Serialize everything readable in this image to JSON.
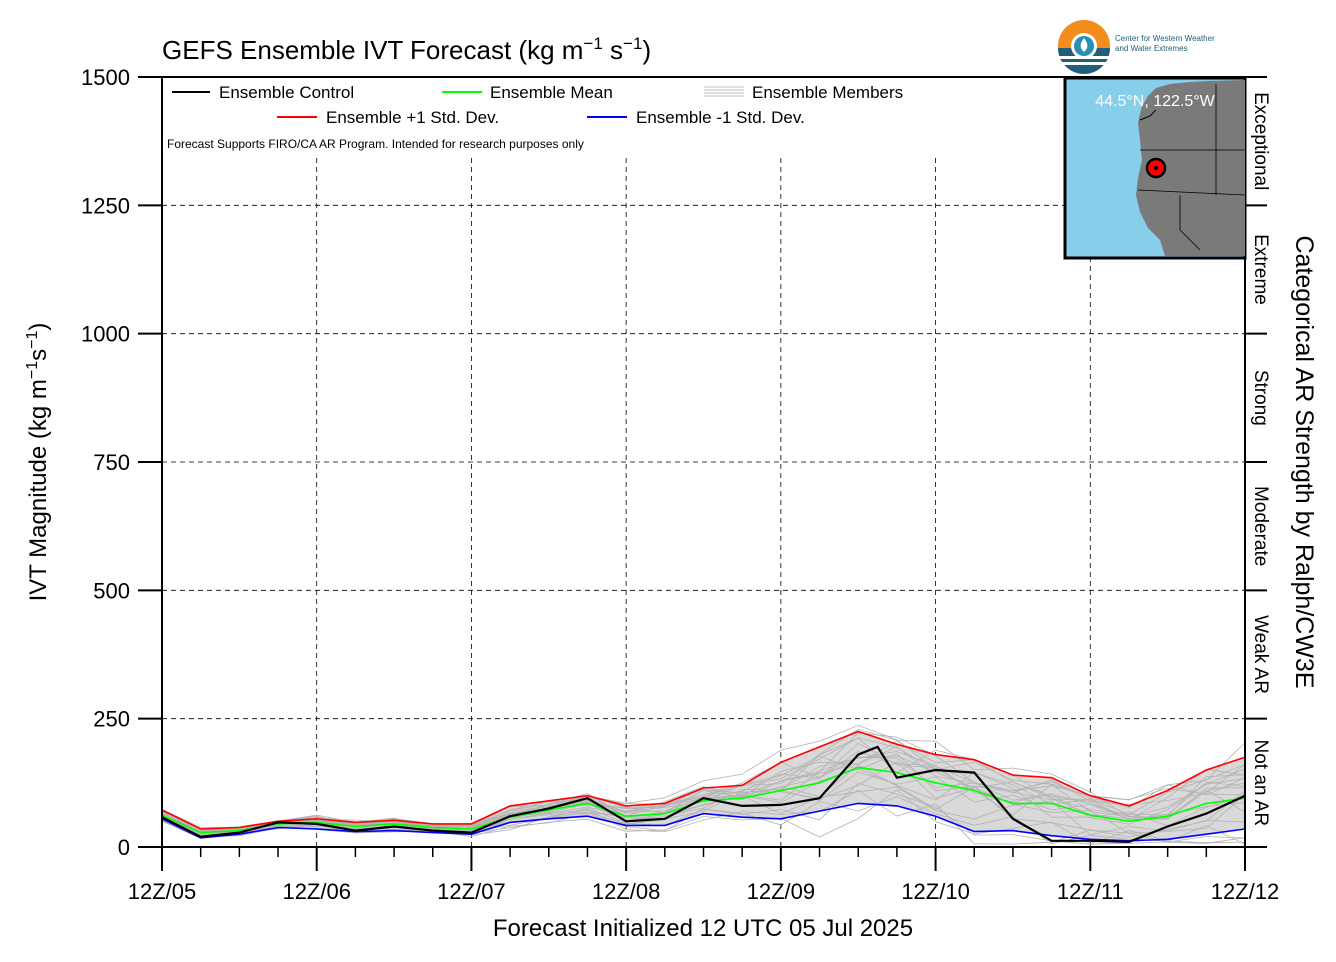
{
  "chart_data": {
    "type": "line",
    "title": "GEFS Ensemble IVT Forecast (kg m",
    "title_sup1": "−1",
    "title_mid": " s",
    "title_sup2": "−1",
    "title_end": ")",
    "ylabel_main": "IVT Magnitude (kg m",
    "ylabel_sup1": "−1",
    "ylabel_mid": "s",
    "ylabel_sup2": "−1",
    "ylabel_end": ")",
    "xlabel": "Forecast Initialized 12 UTC 05 Jul 2025",
    "right_label": "Categorical AR Strength by Ralph/CW3E",
    "note": "Forecast Supports FIRO/CA AR Program. Intended for research purposes only",
    "ylim": [
      0,
      1500
    ],
    "xlim": [
      0,
      168
    ],
    "y_ticks": [
      0,
      250,
      500,
      750,
      1000,
      1250,
      1500
    ],
    "x_ticks": [
      {
        "h": 0,
        "label": "12Z/05"
      },
      {
        "h": 24,
        "label": "12Z/06"
      },
      {
        "h": 48,
        "label": "12Z/07"
      },
      {
        "h": 72,
        "label": "12Z/08"
      },
      {
        "h": 96,
        "label": "12Z/09"
      },
      {
        "h": 120,
        "label": "12Z/10"
      },
      {
        "h": 144,
        "label": "12Z/11"
      },
      {
        "h": 168,
        "label": "12Z/12"
      }
    ],
    "categories_ar": [
      {
        "label": "Not an AR",
        "from": 0,
        "to": 250
      },
      {
        "label": "Weak AR",
        "from": 250,
        "to": 500
      },
      {
        "label": "Moderate",
        "from": 500,
        "to": 750
      },
      {
        "label": "Strong",
        "from": 750,
        "to": 1000
      },
      {
        "label": "Extreme",
        "from": 1000,
        "to": 1250
      },
      {
        "label": "Exceptional",
        "from": 1250,
        "to": 1500
      }
    ],
    "legend": [
      {
        "label": "Ensemble Control",
        "color": "#000000"
      },
      {
        "label": "Ensemble Mean",
        "color": "#00ff00"
      },
      {
        "label": "Ensemble Members",
        "color": "#aaaaaa"
      },
      {
        "label": "Ensemble +1 Std. Dev.",
        "color": "#ff0000"
      },
      {
        "label": "Ensemble -1 Std. Dev.",
        "color": "#0000ff"
      }
    ],
    "location": "44.5°N, 122.5°W",
    "series": [
      {
        "name": "Ensemble Control",
        "color": "#000000",
        "x": [
          0,
          6,
          12,
          18,
          24,
          30,
          36,
          42,
          48,
          54,
          60,
          66,
          72,
          78,
          84,
          90,
          96,
          102,
          108,
          111,
          114,
          120,
          126,
          132,
          138,
          144,
          150,
          156,
          162,
          168
        ],
        "values": [
          58,
          20,
          28,
          48,
          45,
          32,
          40,
          32,
          28,
          60,
          75,
          95,
          50,
          55,
          95,
          80,
          82,
          95,
          180,
          195,
          135,
          150,
          145,
          55,
          12,
          12,
          10,
          40,
          65,
          100
        ]
      },
      {
        "name": "Ensemble Mean",
        "color": "#00ff00",
        "x": [
          0,
          6,
          12,
          18,
          24,
          30,
          36,
          42,
          48,
          54,
          60,
          66,
          72,
          78,
          84,
          90,
          96,
          102,
          108,
          114,
          120,
          126,
          132,
          138,
          144,
          150,
          156,
          162,
          168
        ],
        "values": [
          62,
          28,
          32,
          45,
          48,
          40,
          45,
          38,
          35,
          58,
          72,
          85,
          60,
          65,
          90,
          95,
          110,
          125,
          155,
          145,
          125,
          110,
          85,
          85,
          62,
          50,
          60,
          85,
          95
        ]
      },
      {
        "name": "Ensemble +1 Std. Dev.",
        "color": "#ff0000",
        "x": [
          0,
          6,
          12,
          18,
          24,
          30,
          36,
          42,
          48,
          54,
          60,
          66,
          72,
          78,
          84,
          90,
          96,
          102,
          108,
          114,
          120,
          126,
          132,
          138,
          144,
          150,
          156,
          162,
          168
        ],
        "values": [
          72,
          35,
          38,
          50,
          55,
          48,
          52,
          45,
          45,
          80,
          90,
          100,
          80,
          85,
          115,
          120,
          165,
          195,
          225,
          200,
          180,
          170,
          140,
          135,
          100,
          80,
          110,
          150,
          175
        ]
      },
      {
        "name": "Ensemble -1 Std. Dev.",
        "color": "#0000ff",
        "x": [
          0,
          6,
          12,
          18,
          24,
          30,
          36,
          42,
          48,
          54,
          60,
          66,
          72,
          78,
          84,
          90,
          96,
          102,
          108,
          114,
          120,
          126,
          132,
          138,
          144,
          150,
          156,
          162,
          168
        ],
        "values": [
          55,
          18,
          25,
          38,
          35,
          30,
          32,
          28,
          25,
          48,
          55,
          60,
          42,
          42,
          65,
          58,
          55,
          70,
          85,
          80,
          60,
          30,
          32,
          22,
          15,
          12,
          15,
          25,
          35
        ]
      }
    ]
  }
}
